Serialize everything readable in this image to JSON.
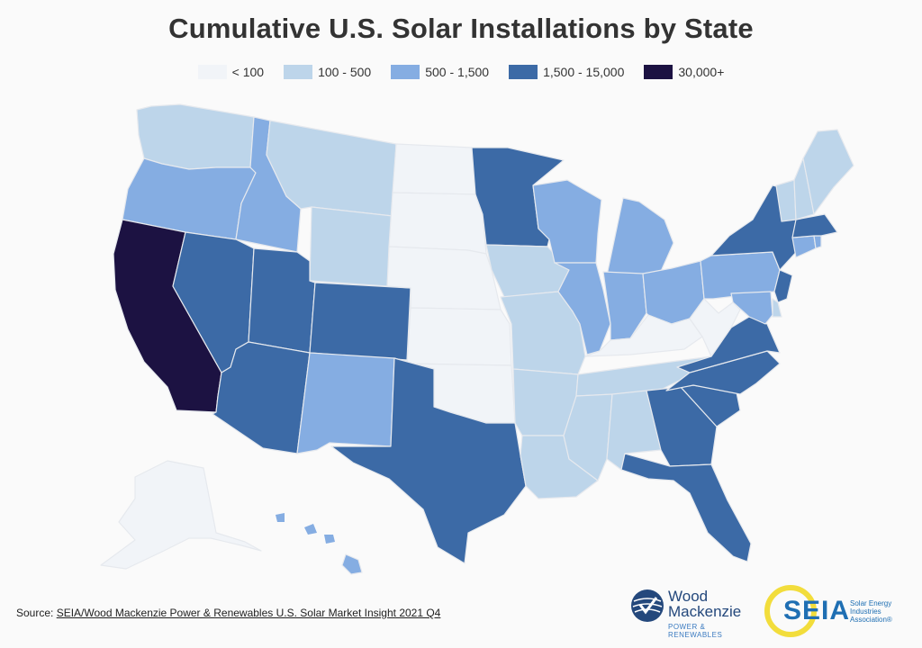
{
  "title": "Cumulative U.S. Solar Installations by State",
  "legend": [
    {
      "label": "< 100",
      "color": "#f1f4f8"
    },
    {
      "label": "100 - 500",
      "color": "#bdd5ea"
    },
    {
      "label": "500 - 1,500",
      "color": "#85ade2"
    },
    {
      "label": "1,500 - 15,000",
      "color": "#3c6aa6"
    },
    {
      "label": "30,000+",
      "color": "#1c1242"
    }
  ],
  "states": [
    {
      "id": "WA",
      "bin": 1
    },
    {
      "id": "OR",
      "bin": 2
    },
    {
      "id": "CA",
      "bin": 4
    },
    {
      "id": "ID",
      "bin": 2
    },
    {
      "id": "NV",
      "bin": 3
    },
    {
      "id": "MT",
      "bin": 1
    },
    {
      "id": "WY",
      "bin": 1
    },
    {
      "id": "UT",
      "bin": 3
    },
    {
      "id": "AZ",
      "bin": 3
    },
    {
      "id": "CO",
      "bin": 3
    },
    {
      "id": "NM",
      "bin": 2
    },
    {
      "id": "ND",
      "bin": 0
    },
    {
      "id": "SD",
      "bin": 0
    },
    {
      "id": "NE",
      "bin": 0
    },
    {
      "id": "KS",
      "bin": 0
    },
    {
      "id": "OK",
      "bin": 0
    },
    {
      "id": "TX",
      "bin": 3
    },
    {
      "id": "MN",
      "bin": 3
    },
    {
      "id": "IA",
      "bin": 1
    },
    {
      "id": "MO",
      "bin": 1
    },
    {
      "id": "AR",
      "bin": 1
    },
    {
      "id": "LA",
      "bin": 1
    },
    {
      "id": "WI",
      "bin": 2
    },
    {
      "id": "IL",
      "bin": 2
    },
    {
      "id": "MI",
      "bin": 2
    },
    {
      "id": "IN",
      "bin": 2
    },
    {
      "id": "OH",
      "bin": 2
    },
    {
      "id": "KY",
      "bin": 0
    },
    {
      "id": "TN",
      "bin": 1
    },
    {
      "id": "MS",
      "bin": 1
    },
    {
      "id": "AL",
      "bin": 1
    },
    {
      "id": "GA",
      "bin": 3
    },
    {
      "id": "FL",
      "bin": 3
    },
    {
      "id": "SC",
      "bin": 3
    },
    {
      "id": "NC",
      "bin": 3
    },
    {
      "id": "VA",
      "bin": 3
    },
    {
      "id": "WV",
      "bin": 0
    },
    {
      "id": "PA",
      "bin": 2
    },
    {
      "id": "NY",
      "bin": 3
    },
    {
      "id": "NJ",
      "bin": 3
    },
    {
      "id": "MD",
      "bin": 2
    },
    {
      "id": "DE",
      "bin": 1
    },
    {
      "id": "CT",
      "bin": 2
    },
    {
      "id": "RI",
      "bin": 2
    },
    {
      "id": "MA",
      "bin": 3
    },
    {
      "id": "VT",
      "bin": 1
    },
    {
      "id": "NH",
      "bin": 1
    },
    {
      "id": "ME",
      "bin": 1
    },
    {
      "id": "AK",
      "bin": 0
    },
    {
      "id": "HI",
      "bin": 2
    }
  ],
  "source": {
    "prefix": "Source: ",
    "link_text": "SEIA/Wood Mackenzie Power & Renewables U.S. Solar Market Insight 2021 Q4"
  },
  "logos": {
    "woodmac_line1": "Wood",
    "woodmac_line2": "Mackenzie",
    "woodmac_sub": "POWER & RENEWABLES",
    "seia": "SEIA",
    "seia_sub": "Solar Energy Industries Association®"
  }
}
